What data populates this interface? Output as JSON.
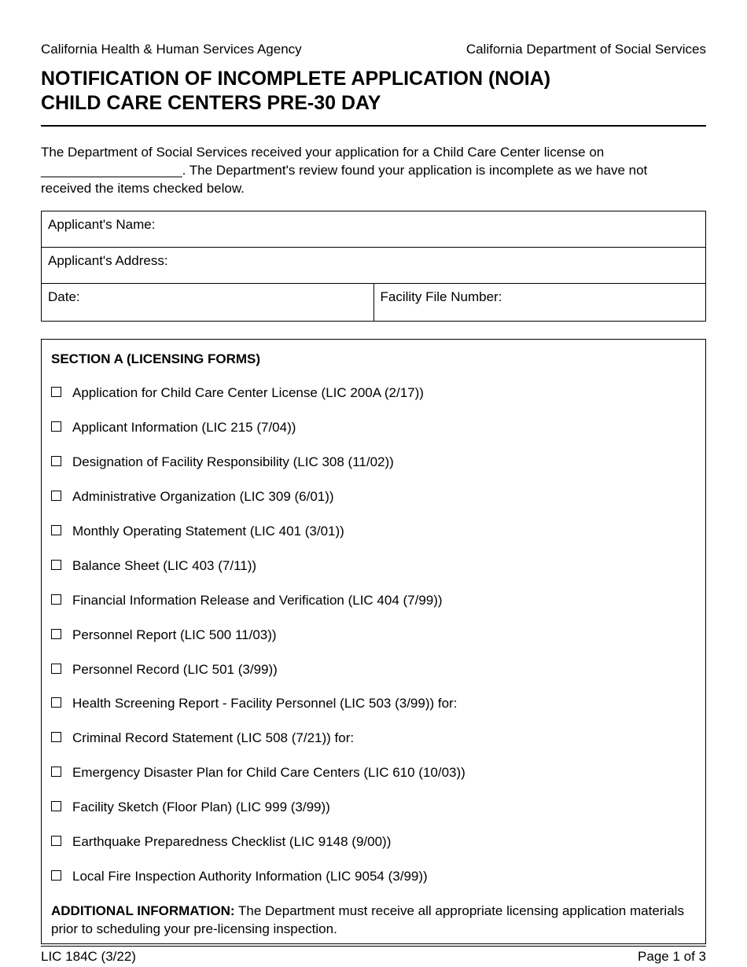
{
  "header": {
    "agency_left": "California Health & Human Services Agency",
    "agency_right": "California Department of Social Services"
  },
  "title": {
    "line1": "NOTIFICATION OF INCOMPLETE APPLICATION (NOIA)",
    "line2": "CHILD CARE CENTERS PRE-30 DAY"
  },
  "intro": {
    "line1": "The Department of Social Services received your application for a Child Care Center license on",
    "line2_prefix": "___________________",
    "line2_rest": ". The Department's review found your application is incomplete as we have not",
    "line3": "received the items checked below."
  },
  "info": {
    "applicant_name_label": "Applicant's Name:",
    "applicant_address_label": "Applicant's Address:",
    "date_label": "Date:",
    "facility_file_label": "Facility File Number:"
  },
  "sectionA": {
    "heading": "SECTION A (LICENSING FORMS)",
    "items": [
      "Application for Child Care Center License (LIC 200A (2/17))",
      "Applicant Information (LIC 215 (7/04))",
      "Designation of Facility Responsibility (LIC 308 (11/02))",
      "Administrative Organization (LIC 309 (6/01))",
      "Monthly Operating Statement (LIC 401 (3/01))",
      "Balance Sheet (LIC 403 (7/11))",
      "Financial Information Release and Verification (LIC 404 (7/99))",
      "Personnel Report (LIC 500 11/03))",
      "Personnel Record (LIC 501 (3/99))",
      "Health Screening Report - Facility Personnel (LIC 503 (3/99)) for:",
      "Criminal Record Statement (LIC 508 (7/21)) for:",
      "Emergency Disaster Plan for Child Care Centers (LIC 610 (10/03))",
      "Facility Sketch (Floor Plan) (LIC 999 (3/99))",
      "Earthquake Preparedness Checklist (LIC 9148 (9/00))",
      "Local Fire Inspection Authority Information (LIC 9054 (3/99))"
    ]
  },
  "additional": {
    "label": "ADDITIONAL INFORMATION:",
    "text": " The Department must receive all appropriate licensing application materials prior to scheduling your pre-licensing inspection."
  },
  "footer": {
    "form_id": "LIC 184C (3/22)",
    "page": "Page 1 of 3"
  }
}
